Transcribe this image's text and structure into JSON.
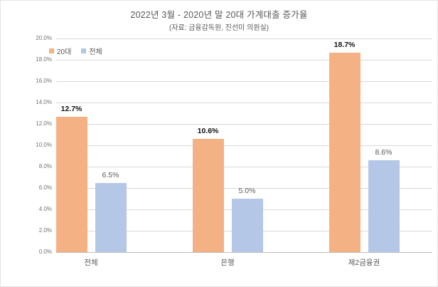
{
  "chart_data": {
    "type": "bar",
    "title": "2022년 3월 - 2020년 말 20대 가계대출 증가율",
    "subtitle": "(자료: 금융감독원, 진선미 의원실)",
    "categories": [
      "전체",
      "은행",
      "제2금융권"
    ],
    "series": [
      {
        "name": "20대",
        "color": "#F4B183",
        "values": [
          12.7,
          10.6,
          18.7
        ],
        "labels": [
          "12.7%",
          "10.6%",
          "18.7%"
        ]
      },
      {
        "name": "전체",
        "color": "#B4C7E7",
        "values": [
          6.5,
          5.0,
          8.6
        ],
        "labels": [
          "6.5%",
          "5.0%",
          "8.6%"
        ]
      }
    ],
    "ylim": [
      0,
      20
    ],
    "ytick_step": 2,
    "ytick_labels": [
      "0.0%",
      "2.0%",
      "4.0%",
      "6.0%",
      "8.0%",
      "10.0%",
      "12.0%",
      "14.0%",
      "16.0%",
      "18.0%",
      "20.0%"
    ],
    "ylabel": "",
    "xlabel": "",
    "grid": true,
    "legend_position": "top-left"
  },
  "colors": {
    "series_20dae": "#F4B183",
    "series_jeonche": "#B4C7E7",
    "gridline": "#D9D9D9",
    "axis_line": "#BFBFBF",
    "text_gray": "#595959",
    "tick_gray": "#737373",
    "value_bold": "#111111",
    "background": "#FFFFFF"
  }
}
